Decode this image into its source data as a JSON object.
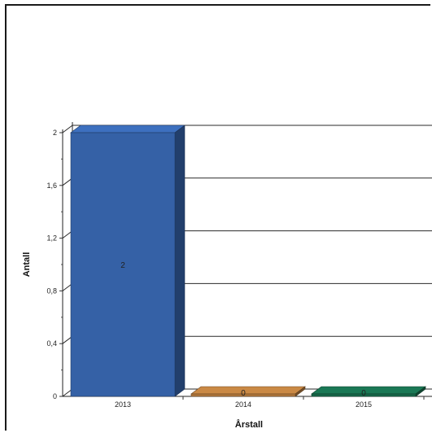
{
  "chart_data": {
    "type": "bar",
    "style": "3d",
    "categories": [
      "2013",
      "2014",
      "2015"
    ],
    "values": [
      2,
      0,
      0
    ],
    "data_labels": [
      "2",
      "0",
      "0"
    ],
    "colors": [
      "#3561a6",
      "#b0773c",
      "#17684a"
    ],
    "xlabel": "Årstall",
    "ylabel": "Antall",
    "ylim": [
      0,
      2
    ],
    "yticks": [
      0,
      0.4,
      0.8,
      1.2,
      1.6,
      2
    ],
    "ytick_labels": [
      "0",
      "0,4",
      "0,8",
      "1,2",
      "1,6",
      "2"
    ],
    "grid": true,
    "legend": "none"
  }
}
